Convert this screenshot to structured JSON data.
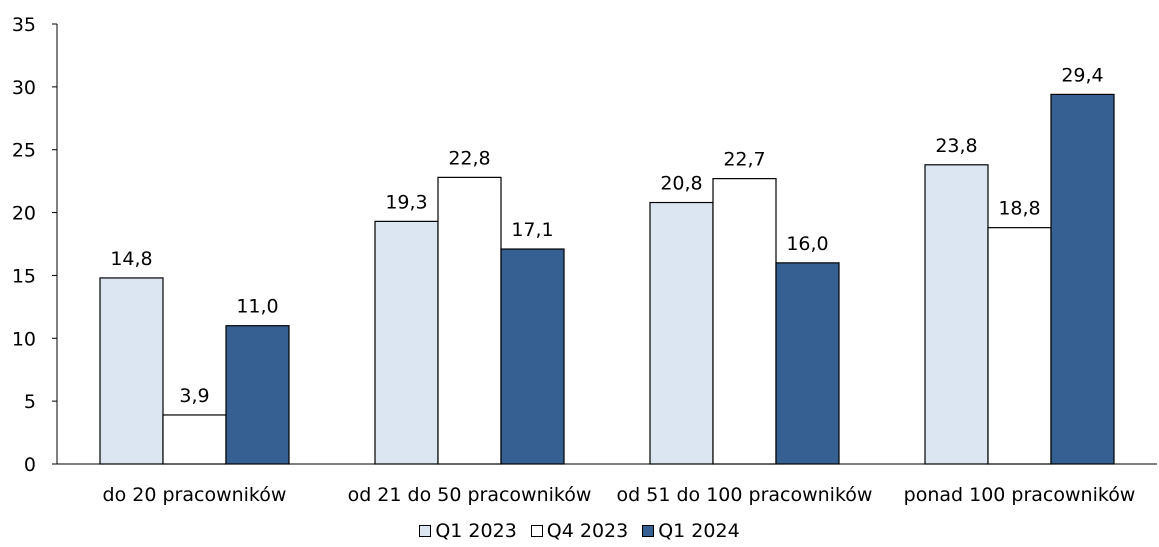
{
  "chart_data": {
    "type": "bar",
    "title": "",
    "categories": [
      "do 20 pracowników",
      "od 21 do 50 pracowników",
      "od 51 do 100 pracowników",
      "ponad 100 pracowników"
    ],
    "series": [
      {
        "name": "Q1 2023",
        "color": "#dce6f2",
        "values": [
          14.8,
          19.3,
          20.8,
          23.8
        ],
        "labels": [
          "14,8",
          "19,3",
          "20,8",
          "23,8"
        ]
      },
      {
        "name": "Q4 2023",
        "color": "#ffffff",
        "values": [
          3.9,
          22.8,
          22.7,
          18.8
        ],
        "labels": [
          "3,9",
          "22,8",
          "22,7",
          "18,8"
        ]
      },
      {
        "name": "Q1 2024",
        "color": "#376092",
        "values": [
          11.0,
          17.1,
          16.0,
          29.4
        ],
        "labels": [
          "11,0",
          "17,1",
          "16,0",
          "29,4"
        ]
      }
    ],
    "ylim": [
      0,
      35
    ],
    "yticks": [
      0,
      5,
      10,
      15,
      20,
      25,
      30,
      35
    ],
    "grid": false,
    "legend": "bottom"
  }
}
